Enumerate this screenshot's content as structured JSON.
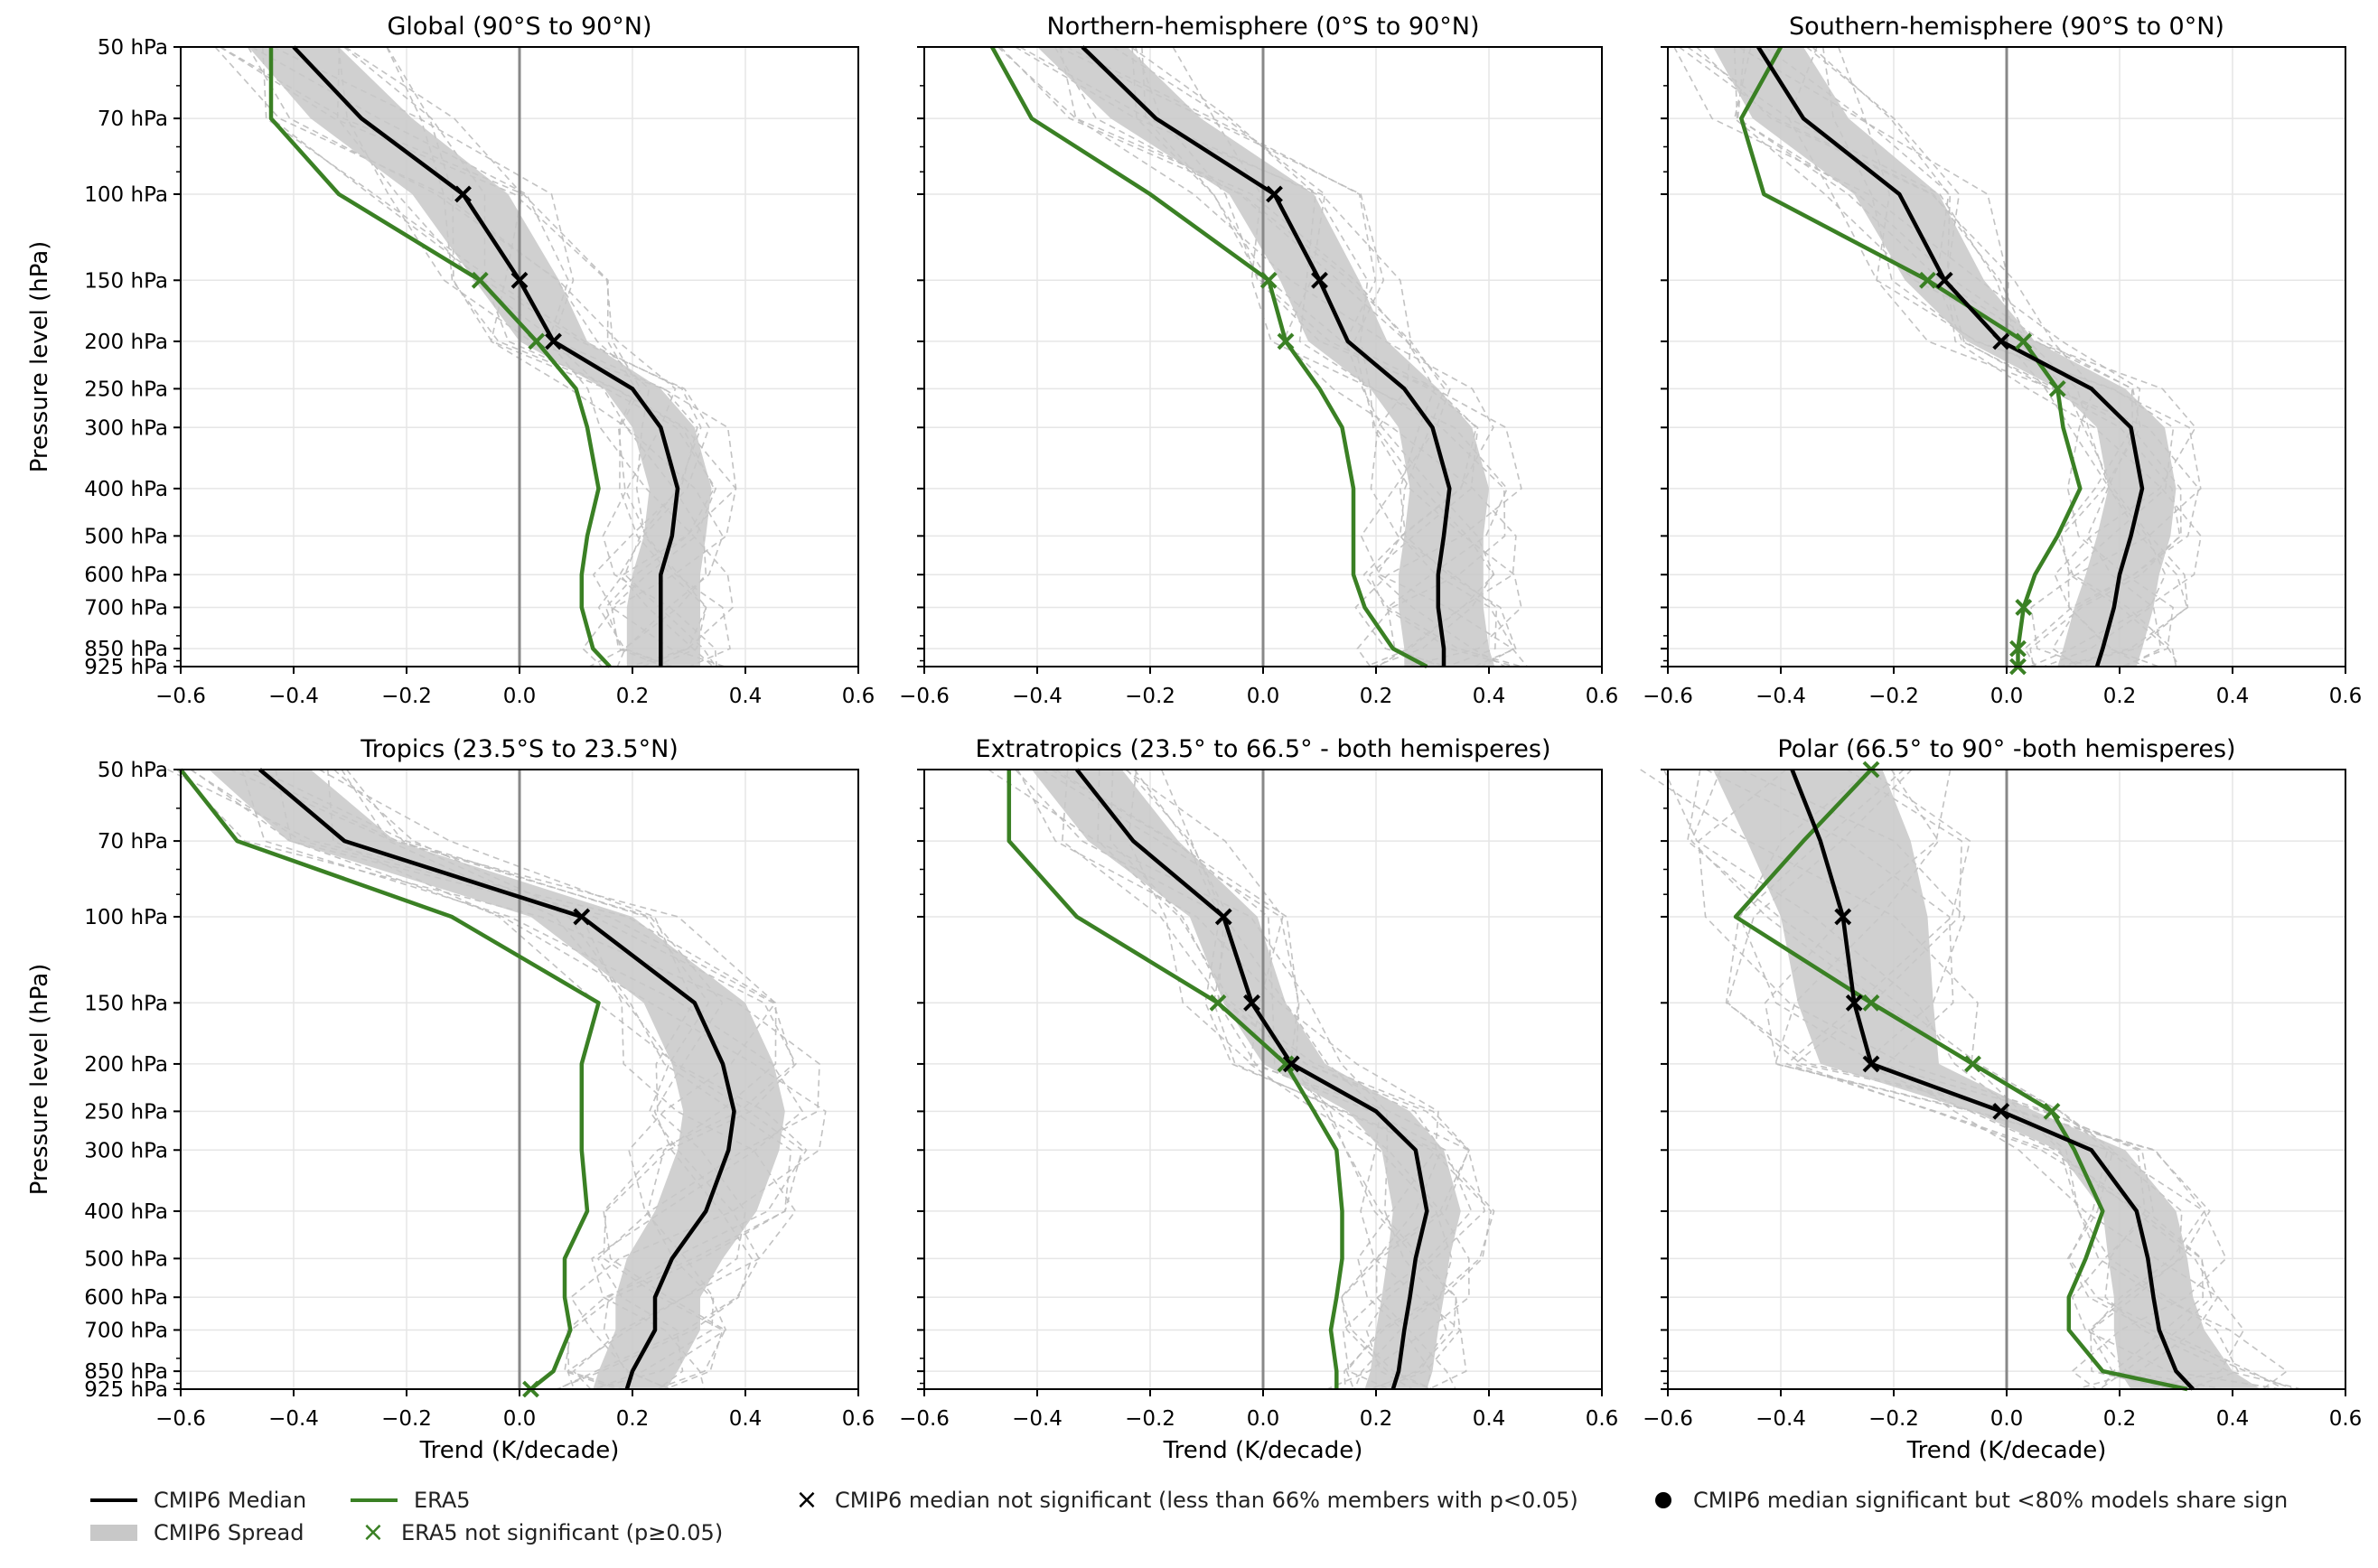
{
  "figure": {
    "levels": [
      50,
      70,
      100,
      150,
      200,
      250,
      300,
      400,
      500,
      600,
      700,
      850,
      925
    ],
    "level_labels": [
      "50 hPa",
      "70 hPa",
      "100 hPa",
      "150 hPa",
      "200 hPa",
      "250 hPa",
      "300 hPa",
      "400 hPa",
      "500 hPa",
      "600 hPa",
      "700 hPa",
      "850 hPa",
      "925 hPa"
    ],
    "xticks": [
      -0.6,
      -0.4,
      -0.2,
      0.0,
      0.2,
      0.4,
      0.6
    ],
    "xtick_labels": [
      "−0.6",
      "−0.4",
      "−0.2",
      "0.0",
      "0.2",
      "0.4",
      "0.6"
    ],
    "xlim": [
      -0.6,
      0.6
    ],
    "xlabel": "Trend (K/decade)",
    "ylabel": "Pressure level (hPa)",
    "colors": {
      "median": "#000000",
      "era5": "#3a8024",
      "spread": "#c8c8c8",
      "members": "#bbbbbb",
      "zero": "#888888",
      "grid": "#e6e6e6"
    }
  },
  "chart_data": [
    {
      "type": "line",
      "title": "Global (90°S to 90°N)",
      "xlabel": "",
      "ylabel": "Pressure level (hPa)",
      "xlim": [
        -0.6,
        0.6
      ],
      "series": [
        {
          "name": "CMIP6 Median",
          "values": [
            -0.4,
            -0.28,
            -0.1,
            0.0,
            0.06,
            0.2,
            0.25,
            0.28,
            0.27,
            0.25,
            0.25,
            0.25,
            0.25
          ]
        },
        {
          "name": "ERA5",
          "values": [
            -0.44,
            -0.44,
            -0.32,
            -0.07,
            0.03,
            0.1,
            0.12,
            0.14,
            0.12,
            0.11,
            0.11,
            0.13,
            0.16
          ]
        },
        {
          "name": "CMIP6 Spread low",
          "values": [
            -0.48,
            -0.37,
            -0.19,
            -0.08,
            0.0,
            0.15,
            0.2,
            0.23,
            0.22,
            0.2,
            0.19,
            0.19,
            0.19
          ]
        },
        {
          "name": "CMIP6 Spread high",
          "values": [
            -0.32,
            -0.19,
            -0.02,
            0.07,
            0.12,
            0.25,
            0.31,
            0.34,
            0.33,
            0.32,
            0.32,
            0.32,
            0.32
          ]
        }
      ],
      "median_not_significant_levels": [
        100,
        150,
        200
      ],
      "era5_not_significant_levels": [
        150,
        200
      ]
    },
    {
      "type": "line",
      "title": "Northern-hemisphere (0°S to 90°N)",
      "xlabel": "",
      "ylabel": "",
      "xlim": [
        -0.6,
        0.6
      ],
      "series": [
        {
          "name": "CMIP6 Median",
          "values": [
            -0.32,
            -0.19,
            0.02,
            0.1,
            0.15,
            0.25,
            0.3,
            0.33,
            0.32,
            0.31,
            0.31,
            0.32,
            0.32
          ]
        },
        {
          "name": "ERA5",
          "values": [
            -0.48,
            -0.41,
            -0.2,
            0.01,
            0.04,
            0.1,
            0.14,
            0.16,
            0.16,
            0.16,
            0.18,
            0.23,
            0.29
          ]
        },
        {
          "name": "CMIP6 Spread low",
          "values": [
            -0.4,
            -0.27,
            -0.06,
            0.03,
            0.08,
            0.19,
            0.24,
            0.26,
            0.25,
            0.24,
            0.24,
            0.25,
            0.25
          ]
        },
        {
          "name": "CMIP6 Spread high",
          "values": [
            -0.24,
            -0.11,
            0.09,
            0.17,
            0.22,
            0.31,
            0.37,
            0.4,
            0.39,
            0.39,
            0.39,
            0.4,
            0.41
          ]
        }
      ],
      "median_not_significant_levels": [
        100,
        150
      ],
      "era5_not_significant_levels": [
        150,
        200
      ]
    },
    {
      "type": "line",
      "title": "Southern-hemisphere (90°S to 0°N)",
      "xlabel": "",
      "ylabel": "",
      "xlim": [
        -0.6,
        0.6
      ],
      "series": [
        {
          "name": "CMIP6 Median",
          "values": [
            -0.44,
            -0.36,
            -0.19,
            -0.11,
            -0.01,
            0.15,
            0.22,
            0.24,
            0.22,
            0.2,
            0.19,
            0.17,
            0.16
          ]
        },
        {
          "name": "ERA5",
          "values": [
            -0.4,
            -0.47,
            -0.43,
            -0.14,
            0.03,
            0.09,
            0.1,
            0.13,
            0.09,
            0.05,
            0.03,
            0.02,
            0.02
          ]
        },
        {
          "name": "CMIP6 Spread low",
          "values": [
            -0.52,
            -0.45,
            -0.27,
            -0.18,
            -0.07,
            0.09,
            0.16,
            0.18,
            0.16,
            0.14,
            0.12,
            0.1,
            0.09
          ]
        },
        {
          "name": "CMIP6 Spread high",
          "values": [
            -0.36,
            -0.28,
            -0.12,
            -0.04,
            0.05,
            0.21,
            0.28,
            0.3,
            0.29,
            0.27,
            0.26,
            0.24,
            0.23
          ]
        }
      ],
      "median_not_significant_levels": [
        150,
        200
      ],
      "era5_not_significant_levels": [
        150,
        200,
        250,
        700,
        850,
        925
      ]
    },
    {
      "type": "line",
      "title": "Tropics (23.5°S to 23.5°N)",
      "xlabel": "Trend (K/decade)",
      "ylabel": "Pressure level (hPa)",
      "xlim": [
        -0.6,
        0.6
      ],
      "series": [
        {
          "name": "CMIP6 Median",
          "values": [
            -0.46,
            -0.31,
            0.11,
            0.31,
            0.36,
            0.38,
            0.37,
            0.33,
            0.27,
            0.24,
            0.24,
            0.2,
            0.19
          ]
        },
        {
          "name": "ERA5",
          "values": [
            -0.6,
            -0.5,
            -0.12,
            0.14,
            0.11,
            0.11,
            0.11,
            0.12,
            0.08,
            0.08,
            0.09,
            0.06,
            0.02
          ]
        },
        {
          "name": "CMIP6 Spread low",
          "values": [
            -0.55,
            -0.41,
            0.02,
            0.22,
            0.27,
            0.29,
            0.28,
            0.24,
            0.19,
            0.17,
            0.17,
            0.14,
            0.13
          ]
        },
        {
          "name": "CMIP6 Spread high",
          "values": [
            -0.37,
            -0.22,
            0.2,
            0.4,
            0.45,
            0.47,
            0.46,
            0.42,
            0.36,
            0.32,
            0.32,
            0.28,
            0.26
          ]
        }
      ],
      "median_not_significant_levels": [
        100
      ],
      "era5_not_significant_levels": [
        925
      ]
    },
    {
      "type": "line",
      "title": "Extratropics (23.5° to 66.5° - both hemisperes)",
      "xlabel": "Trend (K/decade)",
      "ylabel": "",
      "xlim": [
        -0.6,
        0.6
      ],
      "series": [
        {
          "name": "CMIP6 Median",
          "values": [
            -0.33,
            -0.23,
            -0.07,
            -0.02,
            0.05,
            0.2,
            0.27,
            0.29,
            0.27,
            0.26,
            0.25,
            0.24,
            0.23
          ]
        },
        {
          "name": "ERA5",
          "values": [
            -0.45,
            -0.45,
            -0.33,
            -0.08,
            0.04,
            0.09,
            0.13,
            0.14,
            0.14,
            0.13,
            0.12,
            0.13,
            0.13
          ]
        },
        {
          "name": "CMIP6 Spread low",
          "values": [
            -0.41,
            -0.31,
            -0.13,
            -0.07,
            0.0,
            0.15,
            0.21,
            0.23,
            0.22,
            0.21,
            0.2,
            0.19,
            0.18
          ]
        },
        {
          "name": "CMIP6 Spread high",
          "values": [
            -0.25,
            -0.15,
            -0.01,
            0.04,
            0.11,
            0.26,
            0.32,
            0.35,
            0.33,
            0.32,
            0.31,
            0.3,
            0.29
          ]
        }
      ],
      "median_not_significant_levels": [
        100,
        150,
        200
      ],
      "era5_not_significant_levels": [
        150,
        200
      ]
    },
    {
      "type": "line",
      "title": "Polar (66.5° to 90° -both hemisperes)",
      "xlabel": "Trend (K/decade)",
      "ylabel": "",
      "xlim": [
        -0.6,
        0.6
      ],
      "series": [
        {
          "name": "CMIP6 Median",
          "values": [
            -0.38,
            -0.33,
            -0.29,
            -0.27,
            -0.24,
            -0.01,
            0.15,
            0.23,
            0.25,
            0.26,
            0.27,
            0.3,
            0.33
          ]
        },
        {
          "name": "ERA5",
          "values": [
            -0.24,
            -0.36,
            -0.48,
            -0.24,
            -0.06,
            0.08,
            0.12,
            0.17,
            0.14,
            0.11,
            0.11,
            0.17,
            0.32
          ]
        },
        {
          "name": "CMIP6 Spread low",
          "values": [
            -0.52,
            -0.46,
            -0.4,
            -0.37,
            -0.33,
            -0.06,
            0.09,
            0.17,
            0.18,
            0.19,
            0.19,
            0.2,
            0.22
          ]
        },
        {
          "name": "CMIP6 Spread high",
          "values": [
            -0.22,
            -0.17,
            -0.14,
            -0.13,
            -0.12,
            0.05,
            0.21,
            0.3,
            0.32,
            0.33,
            0.35,
            0.4,
            0.45
          ]
        }
      ],
      "median_not_significant_levels": [
        100,
        150,
        200,
        250
      ],
      "era5_not_significant_levels": [
        50,
        150,
        200,
        250
      ]
    }
  ],
  "legend": {
    "median": "CMIP6 Median",
    "spread": "CMIP6 Spread",
    "era5": "ERA5",
    "era5_not_sig": "ERA5 not significant (p≥0.05)",
    "median_not_sig": "CMIP6 median not significant (less than 66% members with p<0.05)",
    "median_sig_low_agreement": "CMIP6 median significant but <80% models share sign",
    "x_marker": "×"
  }
}
